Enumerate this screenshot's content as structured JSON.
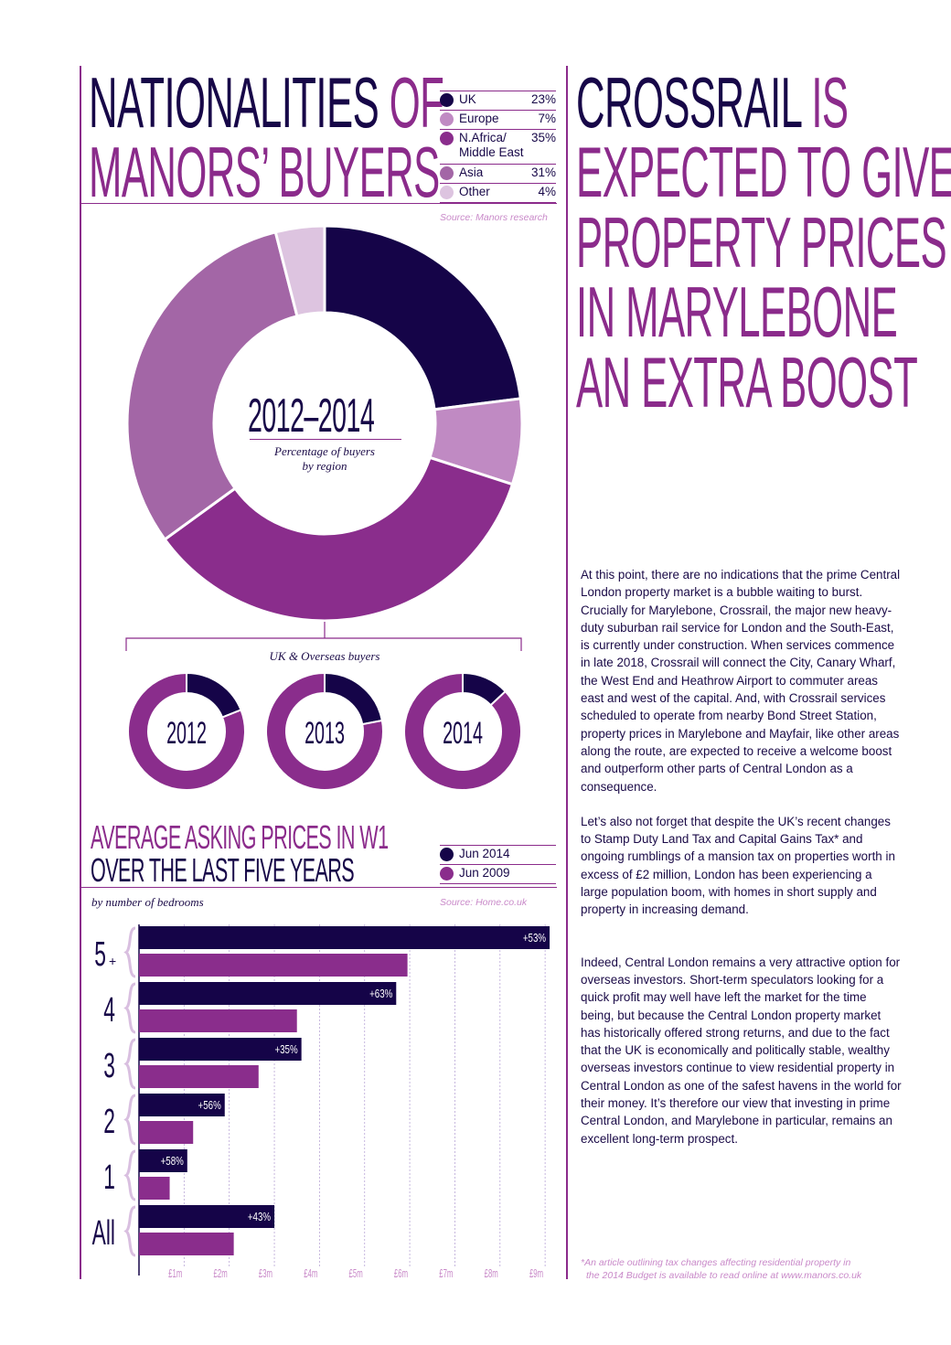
{
  "nationalities": {
    "title_dark": "NATIONALITIES",
    "title_purple_1": "OF",
    "title_purple_2": "MANORS’ BUYERS",
    "source": "Source: Manors research",
    "center_title": "2012–2014",
    "center_subtitle_1": "Percentage of buyers",
    "center_subtitle_2": "by region",
    "uk_overseas_label": "UK & Overseas buyers",
    "legend": [
      {
        "label": "UK",
        "pct": "23%",
        "color": "#150448"
      },
      {
        "label": "Europe",
        "pct": "7%",
        "color": "#c08ac3"
      },
      {
        "label": "N.Africa/\nMiddle East",
        "pct": "35%",
        "color": "#8a2d8c"
      },
      {
        "label": "Asia",
        "pct": "31%",
        "color": "#a366a6"
      },
      {
        "label": "Other",
        "pct": "4%",
        "color": "#ddc4e0"
      }
    ]
  },
  "crossrail": {
    "line1_dark": "CROSSRAIL",
    "line1_purple": "IS",
    "lines_purple": [
      "EXPECTED TO GIVE",
      "PROPERTY PRICES",
      "IN MARYLEBONE",
      "AN EXTRA BOOST"
    ]
  },
  "prices": {
    "title_1": "AVERAGE ASKING PRICES IN W1",
    "title_2": "OVER THE LAST FIVE YEARS",
    "subtitle": "by number of bedrooms",
    "source": "Source: Home.co.uk",
    "legend": [
      {
        "label": "Jun 2014",
        "color": "#150448"
      },
      {
        "label": "Jun 2009",
        "color": "#8a2d8c"
      }
    ]
  },
  "article": {
    "paragraphs": [
      "At this point, there are no indications that the prime Central London property market is a bubble waiting to burst. Crucially for Marylebone, Crossrail, the major new heavy-duty suburban rail service for London and the South-East, is currently under construction. When services commence in late 2018, Crossrail will connect the City, Canary Wharf, the West End and Heathrow Airport to commuter areas east and west of the capital. And, with Crossrail services scheduled to operate from nearby Bond Street Station, property prices in Marylebone and Mayfair, like other areas along the route, are expected to receive a welcome boost and outperform other parts of Central London as a consequence.",
      "Let’s also not forget that despite the UK’s recent changes to Stamp Duty Land Tax and Capital Gains Tax* and ongoing rumblings of a mansion tax on properties worth in excess of £2 million, London has been experiencing a large population boom, with homes in short supply and property in increasing demand.",
      "Indeed, Central London remains a very attractive option for overseas investors. Short-term speculators looking for a quick profit may well have left the market for the time being, but because the Central London property market has historically offered strong returns, and due to the fact that the UK is economically and politically stable, wealthy overseas investors continue to view residential property in Central London as one of the safest havens in the world for their money. It’s therefore our view that investing in prime Central London, and Marylebone in particular, remains an excellent long-term prospect."
    ],
    "footnote_1": "*An article outlining tax changes affecting residential property in",
    "footnote_2": "the 2014 Budget is available to read online at www.manors.co.uk"
  },
  "chart_data": [
    {
      "type": "pie",
      "title": "2012–2014",
      "subtitle": "Percentage of buyers by region",
      "categories": [
        "UK",
        "Europe",
        "N.Africa/Middle East",
        "Asia",
        "Other"
      ],
      "values": [
        23,
        7,
        35,
        31,
        4
      ],
      "colors": [
        "#150448",
        "#c08ac3",
        "#8a2d8c",
        "#a366a6",
        "#ddc4e0"
      ]
    },
    {
      "type": "pie",
      "title": "UK & Overseas buyers",
      "subcharts": [
        {
          "label": "2012",
          "uk_pct": 19
        },
        {
          "label": "2013",
          "uk_pct": 22
        },
        {
          "label": "2014",
          "uk_pct": 13
        }
      ],
      "colors": {
        "uk": "#150448",
        "overseas": "#8a2d8c"
      }
    },
    {
      "type": "bar",
      "title": "AVERAGE ASKING PRICES IN W1 OVER THE LAST FIVE YEARS",
      "subtitle": "by number of bedrooms",
      "orientation": "horizontal",
      "categories": [
        "5+",
        "4",
        "3",
        "2",
        "1",
        "All"
      ],
      "series": [
        {
          "name": "Jun 2014",
          "values": [
            9.1,
            5.7,
            3.6,
            1.9,
            1.07,
            3.0
          ],
          "labels": [
            "+53%",
            "+63%",
            "+35%",
            "+56%",
            "+58%",
            "+43%"
          ]
        },
        {
          "name": "Jun 2009",
          "values": [
            5.95,
            3.5,
            2.65,
            1.2,
            0.68,
            2.1
          ]
        }
      ],
      "x_ticks": [
        "£1m",
        "£2m",
        "£3m",
        "£4m",
        "£5m",
        "£6m",
        "£7m",
        "£8m",
        "£9m"
      ],
      "xlim": [
        0,
        9.2
      ],
      "grid": true
    }
  ]
}
